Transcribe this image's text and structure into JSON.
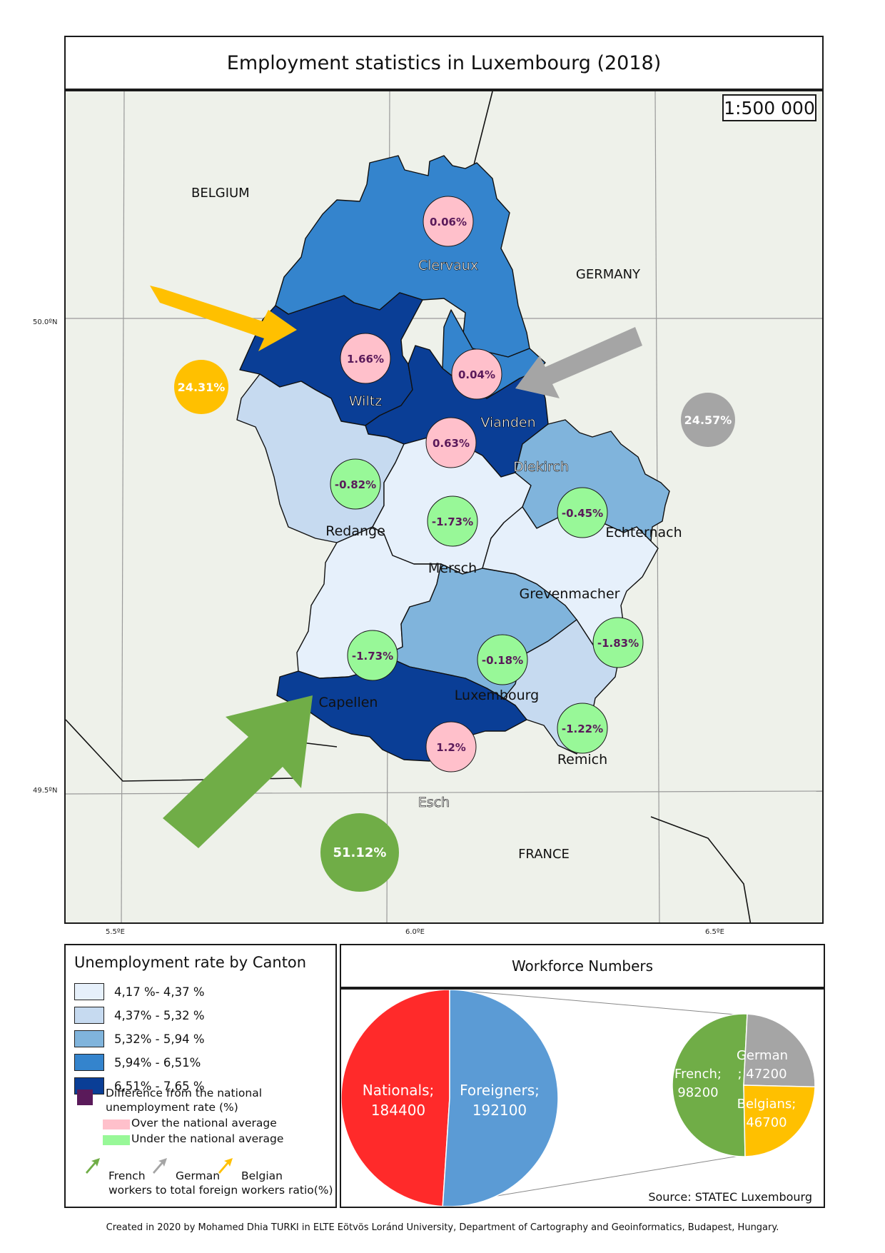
{
  "title": "Employment statistics in Luxembourg (2018)",
  "scale": "1:500 000",
  "coordinates": {
    "lon_labels": [
      "5.5ºE",
      "6.0ºE",
      "6.5ºE"
    ],
    "lat_labels": [
      "50.0ºN",
      "49.5ºN"
    ]
  },
  "countries": {
    "belgium": "BELGIUM",
    "germany": "GERMANY",
    "france": "FRANCE"
  },
  "cantons": [
    {
      "name": "Clervaux",
      "diff": "0.06%",
      "over_average": true,
      "class": 4
    },
    {
      "name": "Wiltz",
      "diff": "1.66%",
      "over_average": true,
      "class": 5
    },
    {
      "name": "Vianden",
      "diff": "0.04%",
      "over_average": true,
      "class": 4
    },
    {
      "name": "Diekirch",
      "diff": "0.63%",
      "over_average": true,
      "class": 5
    },
    {
      "name": "Redange",
      "diff": "-0.82%",
      "over_average": false,
      "class": 2
    },
    {
      "name": "Mersch",
      "diff": "-1.73%",
      "over_average": false,
      "class": 1
    },
    {
      "name": "Echternach",
      "diff": "-0.45%",
      "over_average": false,
      "class": 3
    },
    {
      "name": "Grevenmacher",
      "diff": "-1.83%",
      "over_average": false,
      "class": 1
    },
    {
      "name": "Capellen",
      "diff": "-1.73%",
      "over_average": false,
      "class": 1
    },
    {
      "name": "Luxembourg",
      "diff": "-0.18%",
      "over_average": false,
      "class": 3
    },
    {
      "name": "Remich",
      "diff": "-1.22%",
      "over_average": false,
      "class": 2
    },
    {
      "name": "Esch",
      "diff": "1.2%",
      "over_average": true,
      "class": 5
    }
  ],
  "foreign_ratios": {
    "belgian": {
      "value": "24.31%",
      "color": "#ffc000"
    },
    "german": {
      "value": "24.57%",
      "color": "#a5a5a5"
    },
    "french": {
      "value": "51.12%",
      "color": "#70ad47"
    }
  },
  "legend": {
    "title": "Unemployment rate by Canton",
    "classes": [
      {
        "label": "4,17 %- 4,37 %",
        "color": "#e6f0fb"
      },
      {
        "label": "4,37% - 5,32 %",
        "color": "#c6daf0"
      },
      {
        "label": "5,32% - 5,94 %",
        "color": "#80b4dc"
      },
      {
        "label": "5,94% - 6,51%",
        "color": "#3484cd"
      },
      {
        "label": "6,51% - 7,65 %",
        "color": "#0a3e96"
      }
    ],
    "diff_label_line1": "Difference from the national",
    "diff_label_line2": "unemployment rate (%)",
    "over_label": "Over the national average",
    "under_label": "Under the national average",
    "over_color": "#ffc0cb",
    "under_color": "#98f898",
    "diff_color": "#5a1a5a",
    "arrow_french": "French",
    "arrow_german": "German",
    "arrow_belgian": "Belgian",
    "arrow_caption": "workers to total foreign workers ratio(%)"
  },
  "workforce": {
    "title": "Workforce Numbers",
    "main_pie": [
      {
        "label": "Nationals;",
        "value": 184400,
        "color": "#ff2a2a"
      },
      {
        "label": "Foreigners;",
        "value": 192100,
        "color": "#5b9bd5"
      }
    ],
    "foreign_pie": [
      {
        "label": "French;",
        "value": 98200,
        "color": "#70ad47"
      },
      {
        "label": "German",
        "label2": "; 47200",
        "value": 47200,
        "color": "#a5a5a5"
      },
      {
        "label": "Belgians;",
        "value": 46700,
        "color": "#ffc000"
      }
    ],
    "source": "Source: STATEC Luxembourg"
  },
  "credit": "Created in 2020 by Mohamed Dhia TURKI in ELTE Eötvös Loránd University, Department of Cartography and Geoinformatics, Budapest, Hungary."
}
